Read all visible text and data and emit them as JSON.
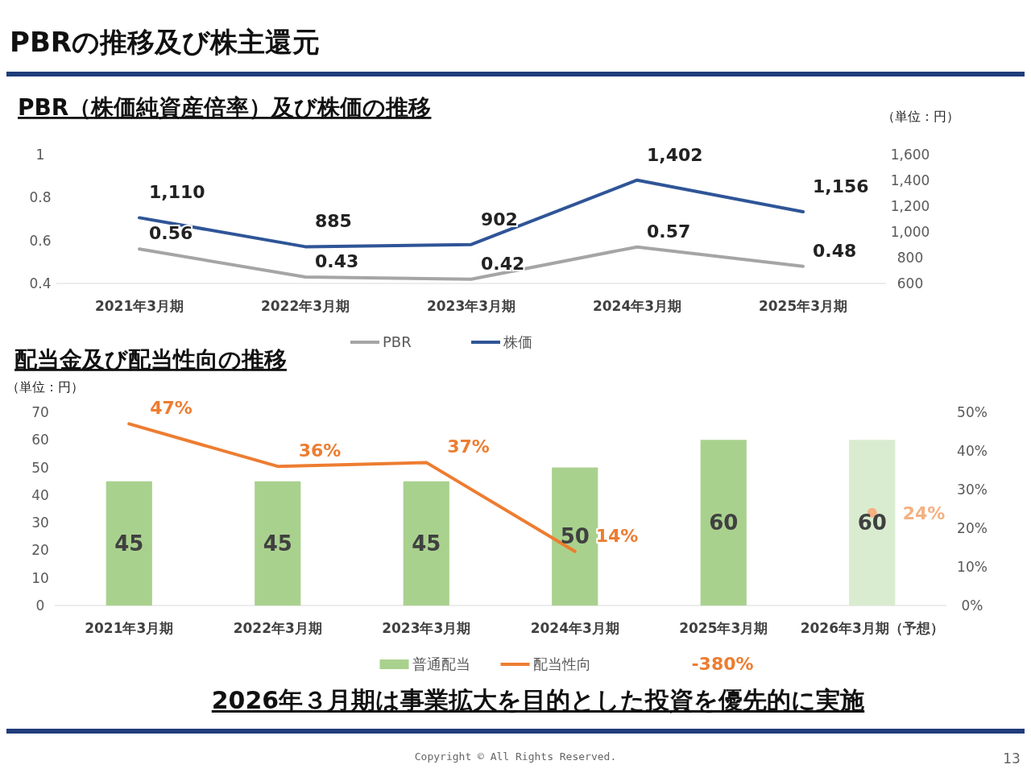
{
  "chart_data": [
    {
      "type": "line",
      "title": "PBR（株価純資産倍率）及び株価の推移",
      "y2label": "（単位：円）",
      "annotations": [
        "PBRの推移及び株主還元"
      ],
      "categories": [
        "2021年3月期",
        "2022年3月期",
        "2023年3月期",
        "2024年3月期",
        "2025年3月期"
      ],
      "ylim": [
        0.4,
        1
      ],
      "yticks": [
        0.4,
        0.6,
        0.8,
        1
      ],
      "y2lim": [
        600,
        1600
      ],
      "y2ticks": [
        600,
        800,
        {
          "value": 1000,
          "label": "1,000"
        },
        {
          "value": 1200,
          "label": "1,200"
        },
        {
          "value": 1400,
          "label": "1,400"
        },
        {
          "value": 1600,
          "label": "1,600"
        }
      ],
      "series": [
        {
          "name": "PBR",
          "color": "#a5a5a5",
          "values": [
            0.56,
            0.43,
            0.42,
            0.57,
            0.48
          ]
        },
        {
          "name": "株価",
          "color": "#2f5597",
          "axis": "y2",
          "values": [
            1110,
            885,
            902,
            1402,
            1156
          ],
          "value_labels": [
            "1,110",
            "885",
            "902",
            "1,402",
            "1,156"
          ]
        }
      ],
      "data_labels": true,
      "legend": "bottom"
    },
    {
      "type": "bar",
      "title": "配当金及び配当性向の推移",
      "ylabel": "（単位：円）",
      "annotations": [
        "2026年３月期は事業拡大を目的とした投資を優先的に実施",
        "Copyright © All Rights Reserved.",
        "13",
        "-380%"
      ],
      "categories": [
        "2021年3月期",
        "2022年3月期",
        "2023年3月期",
        "2024年3月期",
        "2025年3月期",
        "2026年3月期（予想）"
      ],
      "ylim": [
        0,
        70
      ],
      "yticks": [
        0,
        10,
        20,
        30,
        40,
        50,
        60,
        70
      ],
      "y2lim": [
        0,
        50
      ],
      "y2ticks": [
        {
          "value": 0,
          "label": "0%"
        },
        {
          "value": 10,
          "label": "10%"
        },
        {
          "value": 20,
          "label": "20%"
        },
        {
          "value": 30,
          "label": "30%"
        },
        {
          "value": 40,
          "label": "40%"
        },
        {
          "value": 50,
          "label": "50%"
        }
      ],
      "series": [
        {
          "name": "普通配当",
          "color": "#a9d18e",
          "colors": [
            "#a9d18e",
            "#a9d18e",
            "#a9d18e",
            "#a9d18e",
            "#a9d18e",
            "#d9ecd0"
          ],
          "values": [
            45,
            45,
            45,
            50,
            60,
            60
          ],
          "value_labels": [
            "45",
            "45",
            "45",
            "50",
            "60",
            "60"
          ]
        },
        {
          "name": "配当性向",
          "type": "line",
          "axis": "y2",
          "color": "#ed7d31",
          "values": [
            47,
            36,
            37,
            14,
            null,
            null
          ],
          "value_labels": [
            "47%",
            "36%",
            "37%",
            "14%",
            null,
            null
          ]
        },
        {
          "type": "scatter",
          "axis": "y2",
          "color": "#f4b183",
          "marker": "circle",
          "values": [
            null,
            null,
            null,
            null,
            null,
            24
          ],
          "value_labels": [
            null,
            null,
            null,
            null,
            null,
            "24%"
          ]
        }
      ],
      "legend": "bottom"
    }
  ]
}
